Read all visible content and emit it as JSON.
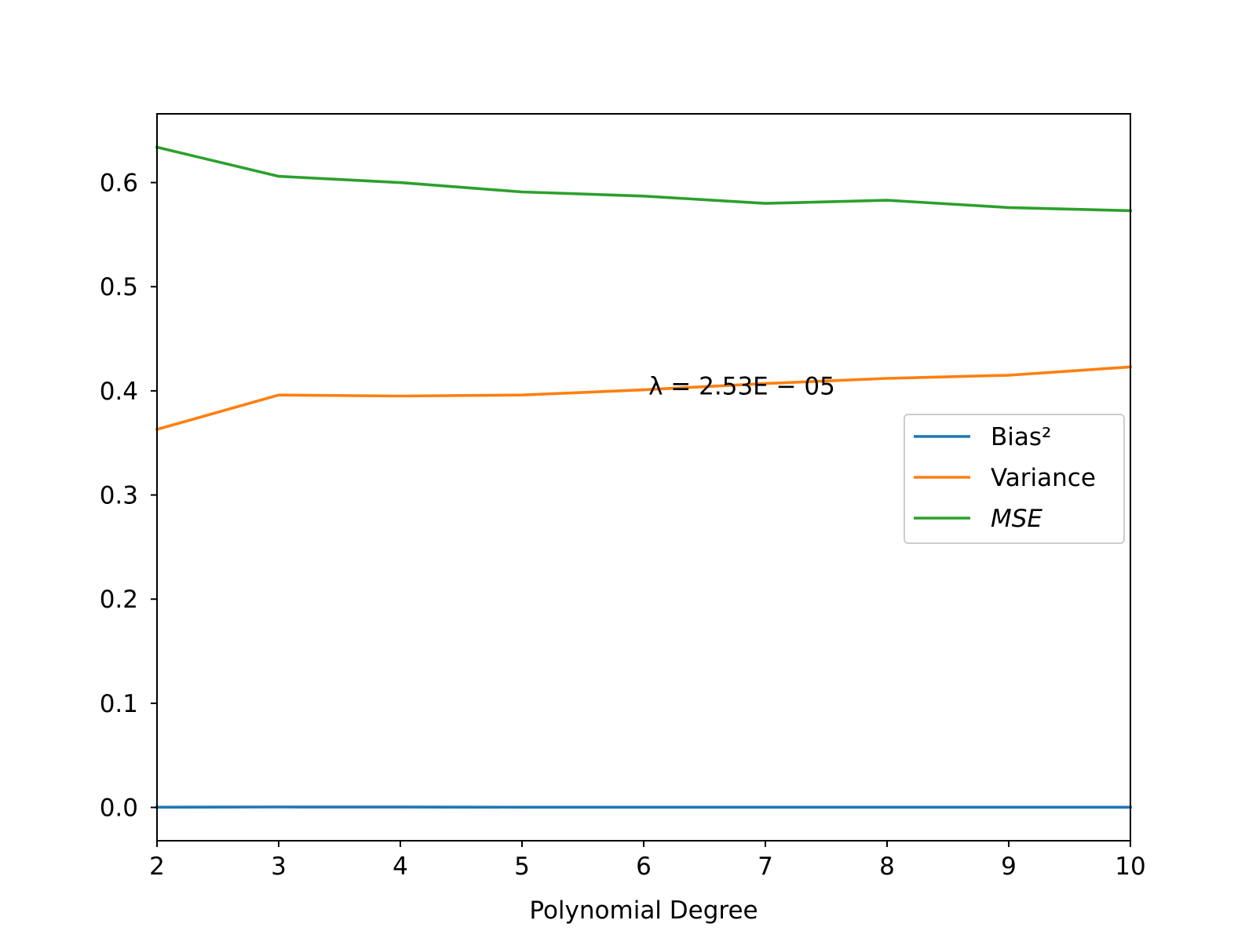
{
  "chart_data": {
    "type": "line",
    "title": "",
    "xlabel": "Polynomial Degree",
    "ylabel": "",
    "xlim": [
      2,
      10
    ],
    "ylim": [
      -0.032,
      0.666
    ],
    "x": [
      2,
      3,
      4,
      5,
      6,
      7,
      8,
      9,
      10
    ],
    "xticks": [
      "2",
      "3",
      "4",
      "5",
      "6",
      "7",
      "8",
      "9",
      "10"
    ],
    "yticks": [
      "0.0",
      "0.1",
      "0.2",
      "0.3",
      "0.4",
      "0.5",
      "0.6"
    ],
    "ytick_values": [
      0.0,
      0.1,
      0.2,
      0.3,
      0.4,
      0.5,
      0.6
    ],
    "grid": false,
    "legend_position": "center-right",
    "annotation": {
      "text": "λ = 2.53E − 05",
      "x": 6.0,
      "y": 0.423
    },
    "series": [
      {
        "name": "Bias²",
        "color": "#1f77b4",
        "italic": false,
        "values": [
          0.0002,
          0.0004,
          0.0003,
          0.0002,
          0.0002,
          0.0002,
          0.0002,
          0.0002,
          0.0002
        ]
      },
      {
        "name": "Variance",
        "color": "#ff7f0e",
        "italic": false,
        "values": [
          0.363,
          0.396,
          0.395,
          0.396,
          0.401,
          0.407,
          0.412,
          0.415,
          0.423
        ]
      },
      {
        "name": "MSE",
        "color": "#2ca02c",
        "italic": true,
        "values": [
          0.634,
          0.606,
          0.6,
          0.591,
          0.587,
          0.58,
          0.583,
          0.576,
          0.573
        ]
      }
    ]
  }
}
